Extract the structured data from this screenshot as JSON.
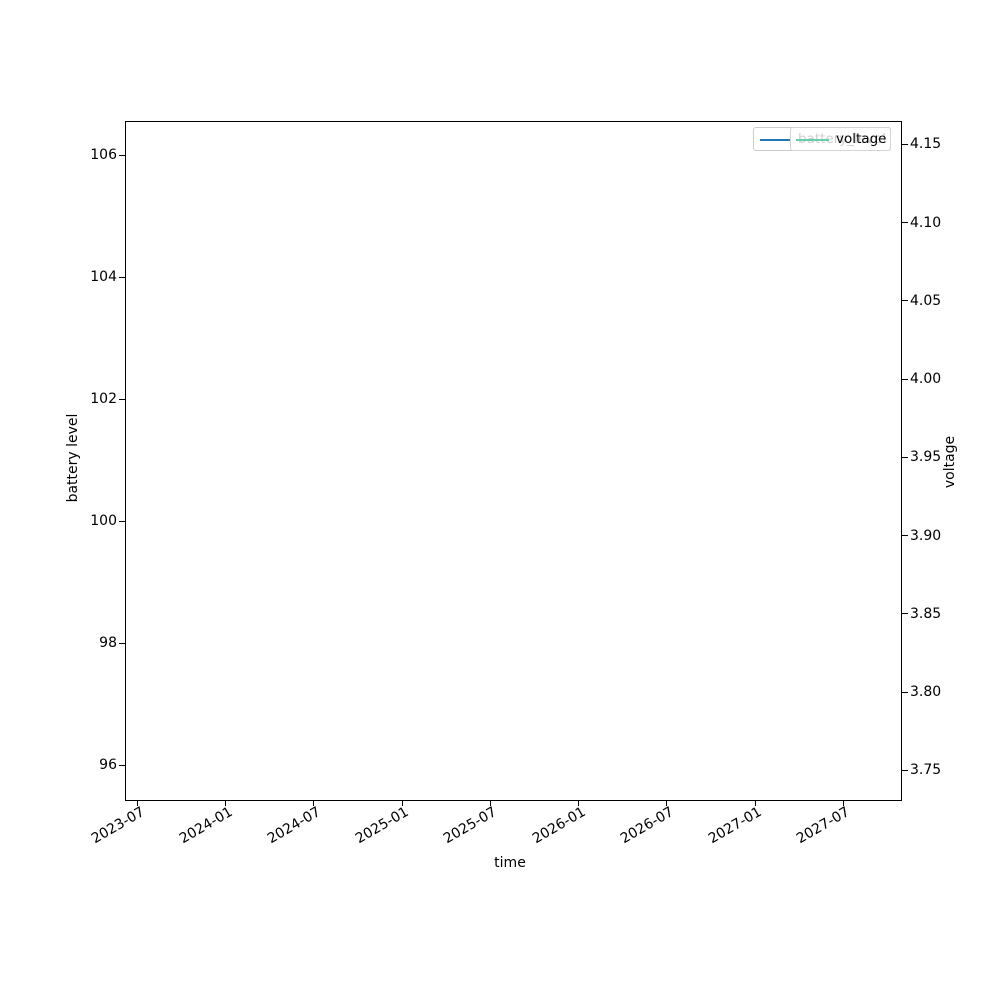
{
  "chart_data": {
    "type": "line",
    "title": "",
    "xlabel": "time",
    "x_tick_labels": [
      "2023-07",
      "2024-01",
      "2024-07",
      "2025-01",
      "2025-07",
      "2026-01",
      "2026-07",
      "2027-01",
      "2027-07"
    ],
    "left_axis": {
      "label": "battery level",
      "tick_labels": [
        "106",
        "104",
        "102",
        "100",
        "98",
        "96"
      ],
      "range_top": 106.56,
      "range_bottom": 95.43
    },
    "right_axis": {
      "label": "voltage",
      "tick_labels": [
        "4.15",
        "4.10",
        "4.05",
        "4.00",
        "3.95",
        "3.90",
        "3.85",
        "3.80",
        "3.75"
      ],
      "range_top": 4.165,
      "range_bottom": 3.731
    },
    "series": [
      {
        "name": "battery_level",
        "axis": "left",
        "color": "#1f77b4",
        "x": [],
        "values": []
      },
      {
        "name": "voltage",
        "axis": "right",
        "color": "#66cdaa",
        "x": [],
        "values": []
      }
    ],
    "grid": false,
    "legend_position": "upper right"
  },
  "legend": {
    "battery": {
      "label": "battery_level",
      "color": "#1f77b4"
    },
    "voltage": {
      "label": "voltage",
      "color": "#66cdaa"
    }
  },
  "colors": {
    "spine": "#000000",
    "tick_text": "#000000",
    "covered_text": "#cccccc",
    "legend_border": "#cccccc"
  }
}
